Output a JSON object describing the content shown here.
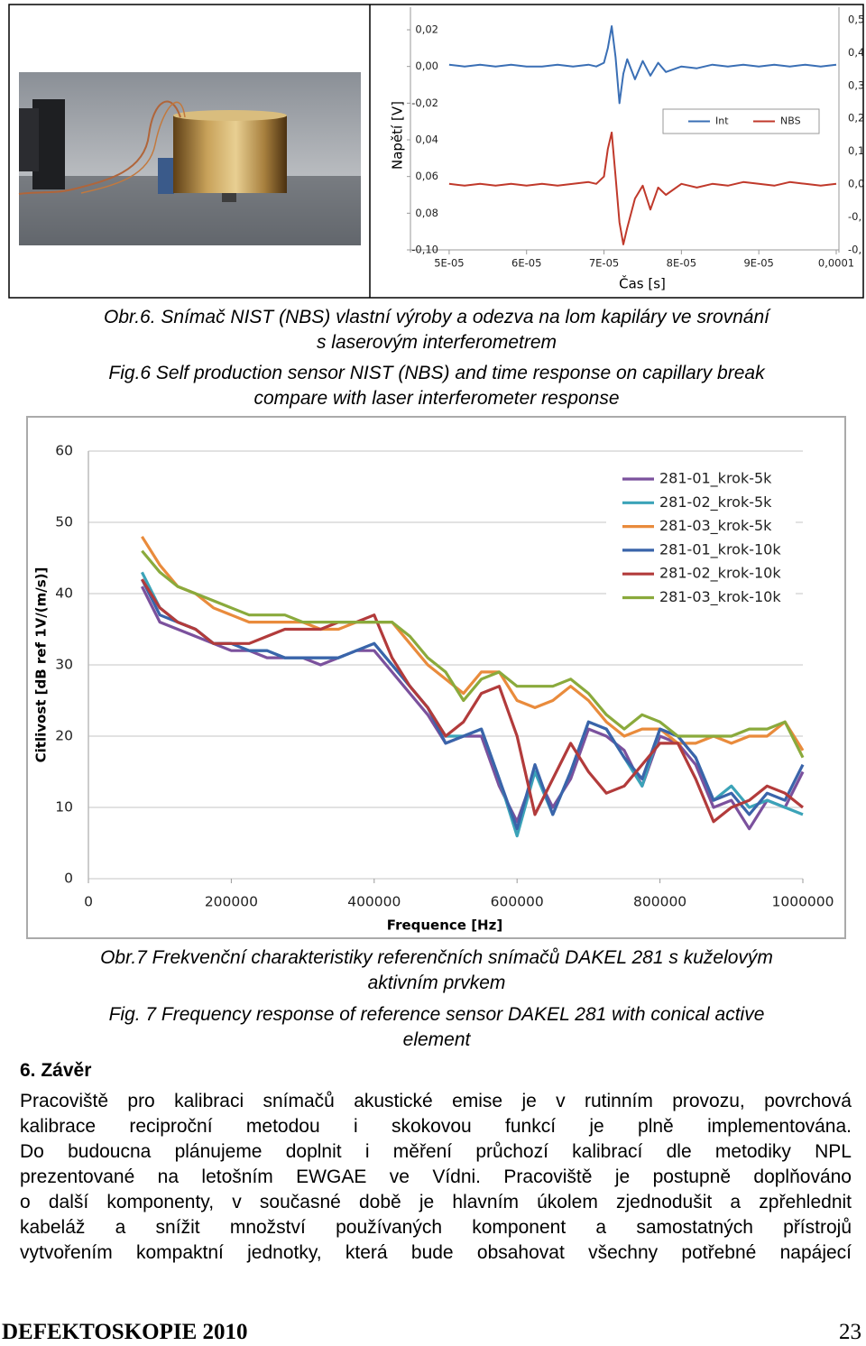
{
  "chart_data": [
    {
      "type": "line",
      "y_label": "Napětí [V]",
      "x_label": "Čas [s]",
      "x": [
        5e-05,
        5.2e-05,
        5.4e-05,
        5.6e-05,
        5.8e-05,
        6e-05,
        6.2e-05,
        6.4e-05,
        6.6e-05,
        6.8e-05,
        6.9e-05,
        7e-05,
        7.05e-05,
        7.1e-05,
        7.15e-05,
        7.2e-05,
        7.25e-05,
        7.3e-05,
        7.4e-05,
        7.5e-05,
        7.6e-05,
        7.7e-05,
        7.8e-05,
        8e-05,
        8.2e-05,
        8.4e-05,
        8.6e-05,
        8.8e-05,
        9e-05,
        9.2e-05,
        9.4e-05,
        9.6e-05,
        9.8e-05,
        0.0001
      ],
      "series": [
        {
          "name": "Int",
          "color": "#3a6fb5",
          "values": [
            0.001,
            0.0,
            0.001,
            0.0,
            0.001,
            0.0,
            0.0,
            0.001,
            0.0,
            0.001,
            0.0,
            0.002,
            0.01,
            0.022,
            0.005,
            -0.02,
            -0.004,
            0.004,
            -0.007,
            0.003,
            -0.005,
            0.002,
            -0.003,
            0.0,
            -0.001,
            0.001,
            0.0,
            0.001,
            0.0,
            0.001,
            0.0,
            0.001,
            0.0,
            0.001
          ]
        },
        {
          "name": "NBS",
          "color": "#c0392b",
          "values": [
            -0.064,
            -0.065,
            -0.064,
            -0.065,
            -0.064,
            -0.065,
            -0.064,
            -0.065,
            -0.064,
            -0.063,
            -0.064,
            -0.06,
            -0.045,
            -0.036,
            -0.06,
            -0.085,
            -0.097,
            -0.088,
            -0.072,
            -0.065,
            -0.078,
            -0.066,
            -0.07,
            -0.064,
            -0.066,
            -0.064,
            -0.065,
            -0.063,
            -0.064,
            -0.065,
            -0.063,
            -0.064,
            -0.065,
            -0.064
          ]
        }
      ],
      "xlim": [
        4.5e-05,
        0.0001
      ],
      "ylim": [
        -0.1,
        0.03
      ],
      "xticks": [
        {
          "value": 5e-05,
          "label": "5E-05"
        },
        {
          "value": 6e-05,
          "label": "6E-05"
        },
        {
          "value": 7e-05,
          "label": "7E-05"
        },
        {
          "value": 8e-05,
          "label": "8E-05"
        },
        {
          "value": 9e-05,
          "label": "9E-05"
        },
        {
          "value": 0.0001,
          "label": "0,0001"
        }
      ],
      "yticks": [
        {
          "value": 0.02,
          "label": "0,02"
        },
        {
          "value": 0,
          "label": "0,00"
        },
        {
          "value": -0.02,
          "label": "-0,02"
        },
        {
          "value": -0.04,
          "label": "0,04"
        },
        {
          "value": -0.06,
          "label": "0,06"
        },
        {
          "value": -0.08,
          "label": "0,08"
        },
        {
          "value": -0.1,
          "label": "-0,10"
        }
      ],
      "right_axis_labels": [
        "0,5",
        "0,4",
        "0,3",
        "0,2",
        "0,1",
        "0,0",
        "-0,",
        "-0,"
      ],
      "grid": false
    },
    {
      "type": "line",
      "y_label": "Citlivost [dB ref 1V/(m/s)]",
      "x_label": "Frequence [Hz]",
      "x": [
        75000,
        100000,
        125000,
        150000,
        175000,
        200000,
        225000,
        250000,
        275000,
        300000,
        325000,
        350000,
        375000,
        400000,
        425000,
        450000,
        475000,
        500000,
        525000,
        550000,
        575000,
        600000,
        625000,
        650000,
        675000,
        700000,
        725000,
        750000,
        775000,
        800000,
        825000,
        850000,
        875000,
        900000,
        925000,
        950000,
        975000,
        1000000
      ],
      "series": [
        {
          "name": "281-01_krok-5k",
          "color": "#7b519d",
          "values": [
            41,
            36,
            35,
            34,
            33,
            32,
            32,
            31,
            31,
            31,
            30,
            31,
            32,
            32,
            29,
            26,
            23,
            19,
            20,
            20,
            13,
            8,
            15,
            10,
            14,
            21,
            20,
            18,
            13,
            20,
            19,
            16,
            10,
            11,
            7,
            11,
            10,
            15
          ]
        },
        {
          "name": "281-02_krok-5k",
          "color": "#3ba3b8",
          "values": [
            43,
            38,
            36,
            35,
            33,
            33,
            32,
            32,
            31,
            31,
            31,
            31,
            32,
            33,
            30,
            27,
            24,
            20,
            20,
            21,
            14,
            6,
            15,
            9,
            15,
            22,
            21,
            17,
            13,
            21,
            20,
            17,
            11,
            13,
            10,
            11,
            10,
            9
          ]
        },
        {
          "name": "281-03_krok-5k",
          "color": "#e98b3c",
          "values": [
            48,
            44,
            41,
            40,
            38,
            37,
            36,
            36,
            36,
            36,
            35,
            35,
            36,
            36,
            36,
            33,
            30,
            28,
            26,
            29,
            29,
            25,
            24,
            25,
            27,
            25,
            22,
            20,
            21,
            21,
            19,
            19,
            20,
            19,
            20,
            20,
            22,
            18
          ]
        },
        {
          "name": "281-01_krok-10k",
          "color": "#3a64aa",
          "values": [
            42,
            37,
            36,
            35,
            33,
            33,
            32,
            32,
            31,
            31,
            31,
            31,
            32,
            33,
            30,
            27,
            24,
            19,
            20,
            21,
            14,
            7,
            16,
            9,
            15,
            22,
            21,
            17,
            14,
            21,
            20,
            17,
            11,
            12,
            9,
            12,
            11,
            16
          ]
        },
        {
          "name": "281-02_krok-10k",
          "color": "#b23b3b",
          "values": [
            42,
            38,
            36,
            35,
            33,
            33,
            33,
            34,
            35,
            35,
            35,
            36,
            36,
            37,
            31,
            27,
            24,
            20,
            22,
            26,
            27,
            20,
            9,
            14,
            19,
            15,
            12,
            13,
            16,
            19,
            19,
            14,
            8,
            10,
            11,
            13,
            12,
            10
          ]
        },
        {
          "name": "281-03_krok-10k",
          "color": "#8aaa3c",
          "values": [
            46,
            43,
            41,
            40,
            39,
            38,
            37,
            37,
            37,
            36,
            36,
            36,
            36,
            36,
            36,
            34,
            31,
            29,
            25,
            28,
            29,
            27,
            27,
            27,
            28,
            26,
            23,
            21,
            23,
            22,
            20,
            20,
            20,
            20,
            21,
            21,
            22,
            17
          ]
        }
      ],
      "xlim": [
        0,
        1000000
      ],
      "ylim": [
        0,
        60
      ],
      "xticks": [
        0,
        200000,
        400000,
        600000,
        800000,
        1000000
      ],
      "yticks": [
        0,
        10,
        20,
        30,
        40,
        50,
        60
      ],
      "grid": true,
      "legend": "upper right"
    }
  ],
  "captions": {
    "fig6": [
      "Obr.6. Snímač NIST (NBS) vlastní výroby a odezva na lom kapiláry ve srovnání",
      "s laserovým interferometrem",
      "Fig.6 Self production sensor NIST (NBS) and time response on capillary break",
      "compare with laser interferometer response"
    ],
    "fig7": [
      "Obr.7 Frekvenční charakteristiky referenčních snímačů DAKEL 281 s kuželovým",
      "aktivním prvkem",
      "Fig. 7 Frequency response of reference sensor DAKEL 281 with conical active",
      "element"
    ]
  },
  "section": {
    "heading": "6. Závěr",
    "lines": [
      "Pracoviště pro kalibraci snímačů akustické emise je v rutinním provozu, povrchová",
      "kalibrace reciproční metodou i skokovou funkcí je plně implementována.",
      "Do budoucna plánujeme doplnit i měření průchozí kalibrací dle metodiky NPL",
      "prezentované na letošním EWGAE ve Vídni. Pracoviště je postupně doplňováno",
      "o další komponenty, v současné době je hlavním úkolem zjednodušit a zpřehlednit",
      "kabeláž a snížit množství používaných komponent a samostatných přístrojů",
      "vytvořením kompaktní jednotky, která bude obsahovat všechny potřebné napájecí"
    ]
  },
  "footer": {
    "journal": "DEFEKTOSKOPIE 2010",
    "page": "23"
  }
}
